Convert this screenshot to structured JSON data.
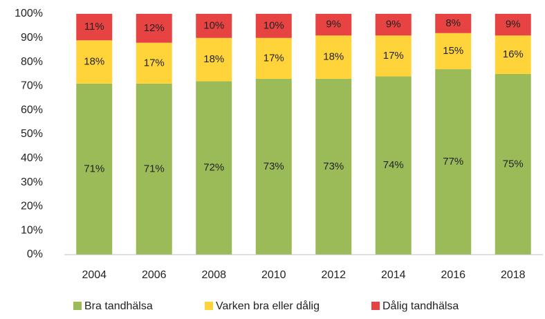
{
  "chart_data": {
    "type": "stacked_bar",
    "categories": [
      "2004",
      "2006",
      "2008",
      "2010",
      "2012",
      "2014",
      "2016",
      "2018"
    ],
    "series": [
      {
        "name": "Bra tandhälsa",
        "color": "#9bbb59",
        "values": [
          71,
          71,
          72,
          73,
          73,
          74,
          77,
          75
        ],
        "value_labels": [
          "71%",
          "71%",
          "72%",
          "73%",
          "73%",
          "74%",
          "77%",
          "75%"
        ]
      },
      {
        "name": "Varken bra eller dålig",
        "color": "#ffd43b",
        "values": [
          18,
          17,
          18,
          17,
          18,
          17,
          15,
          16
        ],
        "value_labels": [
          "18%",
          "17%",
          "18%",
          "17%",
          "18%",
          "17%",
          "15%",
          "16%"
        ]
      },
      {
        "name": "Dålig tandhälsa",
        "color": "#e84343",
        "values": [
          11,
          12,
          10,
          10,
          9,
          9,
          8,
          9
        ],
        "value_labels": [
          "11%",
          "12%",
          "10%",
          "10%",
          "9%",
          "9%",
          "8%",
          "9%"
        ]
      }
    ],
    "ylim": [
      0,
      100
    ],
    "yticks": [
      {
        "value": 0,
        "label": "0%"
      },
      {
        "value": 10,
        "label": "10%"
      },
      {
        "value": 20,
        "label": "20%"
      },
      {
        "value": 30,
        "label": "30%"
      },
      {
        "value": 40,
        "label": "40%"
      },
      {
        "value": 50,
        "label": "50%"
      },
      {
        "value": 60,
        "label": "60%"
      },
      {
        "value": 70,
        "label": "70%"
      },
      {
        "value": 80,
        "label": "80%"
      },
      {
        "value": 90,
        "label": "90%"
      },
      {
        "value": 100,
        "label": "100%"
      }
    ],
    "grid": false,
    "legend": "bottom"
  }
}
